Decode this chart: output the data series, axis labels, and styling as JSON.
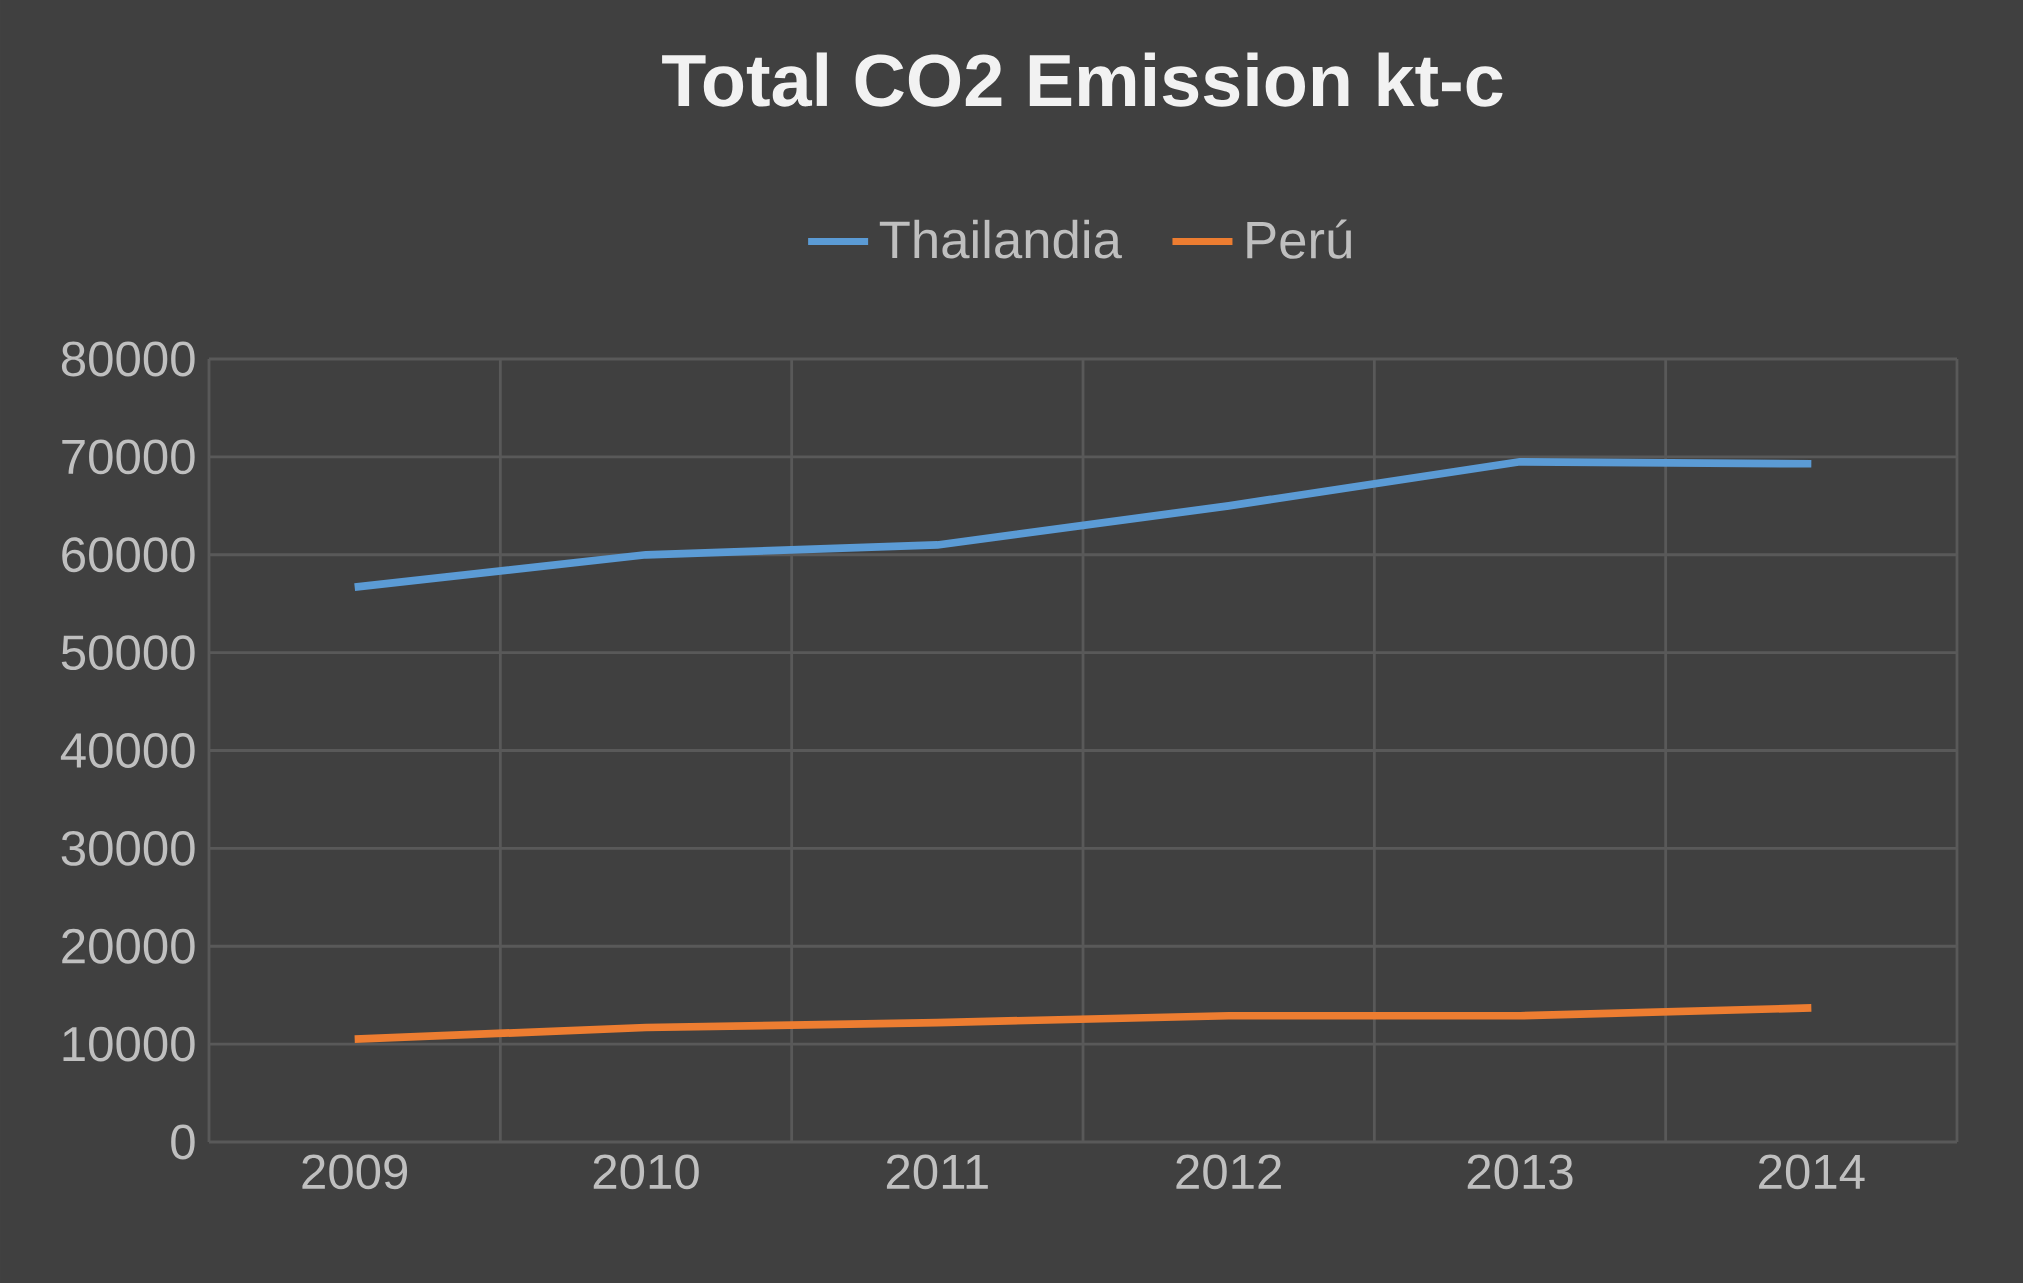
{
  "chart_data": {
    "type": "line",
    "title": "Total CO2 Emission kt-c",
    "categories": [
      "2009",
      "2010",
      "2011",
      "2012",
      "2013",
      "2014"
    ],
    "series": [
      {
        "name": "Thailandia",
        "color": "#5b9bd5",
        "values": [
          56700,
          60000,
          61000,
          65000,
          69500,
          69300
        ]
      },
      {
        "name": "Perú",
        "color": "#ed7d31",
        "values": [
          10500,
          11700,
          12200,
          12900,
          12900,
          13700
        ]
      }
    ],
    "ylim": [
      0,
      80000
    ],
    "yticks": [
      0,
      10000,
      20000,
      30000,
      40000,
      50000,
      60000,
      70000,
      80000
    ],
    "grid": true,
    "legend": "top"
  }
}
